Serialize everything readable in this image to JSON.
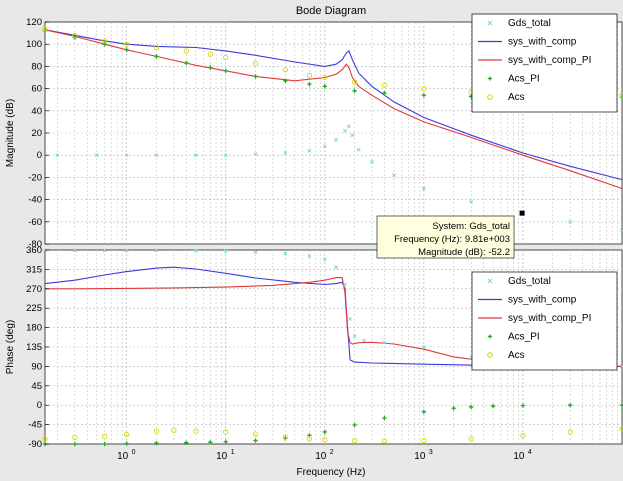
{
  "figure_title": "Bode Diagram",
  "xlabel": "Frequency  (Hz)",
  "colors": {
    "Gds_total": "#7fd6d6",
    "sys_with_comp": "#3b3bdc",
    "sys_with_comp_PI": "#e03a3a",
    "Acs_PI": "#22aa22",
    "Acs": "#d8d800",
    "grid": "#b8b8b8",
    "plot_bg": "#ffffff",
    "figure_bg": "#e8e8e8"
  },
  "legend_labels": [
    "Gds_total",
    "sys_with_comp",
    "sys_with_comp_PI",
    "Acs_PI",
    "Acs"
  ],
  "datatip": {
    "line1": "System: Gds_total",
    "line2": "Frequency (Hz): 9.81e+003",
    "line3": "Magnitude (dB): -52.2",
    "marker": {
      "x": 9810,
      "y": -52.2
    }
  },
  "chart_data": [
    {
      "type": "line",
      "title": "Bode Diagram",
      "ylabel": "Magnitude (dB)",
      "xlabel": "",
      "x_scale": "log",
      "xlim": [
        0.15,
        100000
      ],
      "ylim": [
        -80,
        120
      ],
      "yticks": [
        -80,
        -60,
        -40,
        -20,
        0,
        20,
        40,
        60,
        80,
        100,
        120
      ],
      "xtick_labels": [],
      "grid": true,
      "legend_position": "top-right",
      "series": [
        {
          "name": "sys_with_comp",
          "style": "line",
          "x": [
            0.15,
            0.3,
            0.6,
            1,
            2,
            5,
            10,
            20,
            50,
            100,
            130,
            150,
            165,
            175,
            190,
            220,
            300,
            500,
            1000,
            3000,
            10000,
            30000,
            100000
          ],
          "y": [
            113,
            108,
            103,
            100,
            98,
            97,
            94,
            90,
            84,
            80,
            82,
            86,
            92,
            94,
            86,
            74,
            62,
            48,
            34,
            18,
            2,
            -10,
            -22
          ]
        },
        {
          "name": "sys_with_comp_PI",
          "style": "line",
          "x": [
            0.15,
            0.3,
            0.6,
            1,
            2,
            5,
            10,
            20,
            50,
            100,
            130,
            150,
            165,
            175,
            190,
            220,
            300,
            500,
            1000,
            3000,
            10000,
            30000,
            100000
          ],
          "y": [
            113,
            107,
            100,
            95,
            89,
            81,
            76,
            71,
            67,
            70,
            73,
            77,
            82,
            79,
            70,
            62,
            54,
            42,
            30,
            16,
            0,
            -14,
            -30
          ]
        },
        {
          "name": "Gds_total",
          "style": "markers",
          "x": [
            0.2,
            0.5,
            1,
            2,
            5,
            10,
            20,
            40,
            70,
            100,
            130,
            160,
            175,
            190,
            220,
            300,
            500,
            1000,
            3000,
            10000,
            30000,
            100000
          ],
          "y": [
            0,
            0,
            0,
            0,
            0,
            0,
            1,
            2,
            4,
            8,
            14,
            22,
            26,
            18,
            5,
            -6,
            -18,
            -30,
            -42,
            -52.2,
            -60,
            -68
          ]
        },
        {
          "name": "Acs_PI",
          "style": "markers",
          "x": [
            0.15,
            0.3,
            0.6,
            1,
            2,
            4,
            7,
            10,
            20,
            40,
            70,
            100,
            200,
            400,
            1000,
            3000,
            10000,
            30000,
            100000
          ],
          "y": [
            112,
            106,
            100,
            95,
            89,
            83,
            79,
            76,
            71,
            67,
            64,
            62,
            58,
            56,
            54,
            53,
            53,
            52,
            52
          ]
        },
        {
          "name": "Acs",
          "style": "markers",
          "x": [
            0.15,
            0.3,
            0.6,
            1,
            2,
            4,
            7,
            10,
            20,
            40,
            70,
            100,
            200,
            400,
            1000,
            3000,
            10000,
            30000,
            100000
          ],
          "y": [
            114,
            108,
            103,
            100,
            97,
            94,
            91,
            88,
            83,
            77,
            72,
            70,
            66,
            63,
            60,
            57,
            55,
            54,
            54
          ]
        }
      ]
    },
    {
      "type": "line",
      "ylabel": "Phase (deg)",
      "xlabel": "Frequency  (Hz)",
      "x_scale": "log",
      "xlim": [
        0.15,
        100000
      ],
      "ylim": [
        -90,
        360
      ],
      "yticks": [
        -90,
        -45,
        0,
        45,
        90,
        135,
        180,
        225,
        270,
        315,
        360
      ],
      "xticks": [
        1,
        10,
        100,
        1000,
        10000
      ],
      "xtick_labels": [
        "10^0",
        "10^1",
        "10^2",
        "10^3",
        "10^4"
      ],
      "grid": true,
      "legend_position": "center-right",
      "series": [
        {
          "name": "sys_with_comp",
          "style": "line",
          "x": [
            0.15,
            0.3,
            0.6,
            1,
            2,
            3,
            5,
            10,
            20,
            50,
            100,
            130,
            150,
            160,
            170,
            180,
            200,
            300,
            1000,
            3000,
            10000,
            30000,
            100000
          ],
          "y": [
            282,
            290,
            302,
            310,
            318,
            320,
            316,
            306,
            295,
            285,
            280,
            282,
            285,
            270,
            180,
            105,
            100,
            98,
            95,
            93,
            92,
            91,
            90
          ]
        },
        {
          "name": "sys_with_comp_PI",
          "style": "line",
          "x": [
            0.15,
            0.3,
            1,
            3,
            10,
            30,
            70,
            100,
            130,
            150,
            160,
            170,
            180,
            190,
            220,
            300,
            500,
            1000,
            2000,
            5000,
            10000,
            30000,
            100000
          ],
          "y": [
            270,
            270,
            271,
            272,
            274,
            278,
            285,
            290,
            296,
            296,
            260,
            170,
            145,
            142,
            145,
            146,
            142,
            130,
            112,
            100,
            95,
            92,
            90
          ]
        },
        {
          "name": "Gds_total",
          "style": "markers",
          "x": [
            0.15,
            0.3,
            0.6,
            1,
            2,
            5,
            10,
            20,
            40,
            70,
            100,
            130,
            160,
            180,
            200,
            250,
            400,
            1000,
            3000,
            10000,
            30000,
            100000
          ],
          "y": [
            359,
            359,
            359,
            359,
            359,
            358,
            357,
            355,
            352,
            346,
            338,
            320,
            280,
            200,
            160,
            150,
            145,
            135,
            110,
            96,
            92,
            90
          ]
        },
        {
          "name": "Acs_PI",
          "style": "markers",
          "x": [
            0.15,
            0.3,
            0.6,
            1,
            2,
            4,
            7,
            10,
            20,
            40,
            70,
            100,
            200,
            400,
            1000,
            2000,
            3000,
            5000,
            10000,
            30000,
            100000
          ],
          "y": [
            -90,
            -90,
            -90,
            -89,
            -88,
            -87,
            -86,
            -85,
            -82,
            -77,
            -70,
            -62,
            -46,
            -30,
            -15,
            -7,
            -4,
            -2,
            -1,
            0,
            0
          ]
        },
        {
          "name": "Acs",
          "style": "markers",
          "x": [
            0.15,
            0.3,
            0.6,
            1,
            2,
            3,
            5,
            10,
            20,
            40,
            70,
            100,
            200,
            400,
            1000,
            3000,
            10000,
            30000,
            100000
          ],
          "y": [
            -78,
            -75,
            -72,
            -68,
            -60,
            -58,
            -60,
            -62,
            -67,
            -74,
            -78,
            -80,
            -82,
            -83,
            -82,
            -78,
            -70,
            -62,
            -55
          ]
        }
      ]
    }
  ]
}
